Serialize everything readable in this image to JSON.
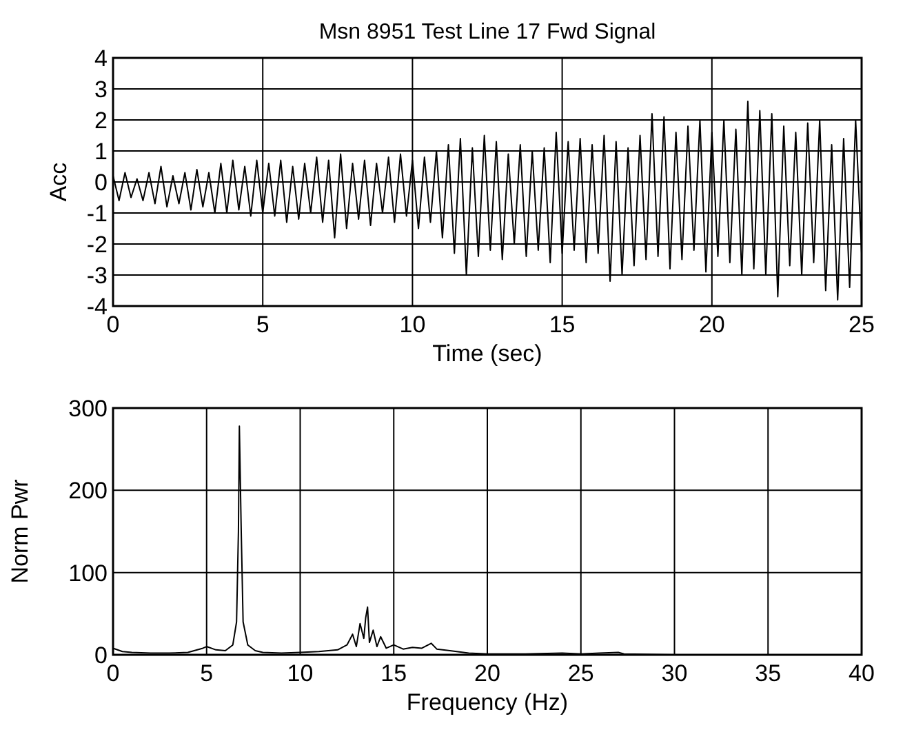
{
  "chart_data": [
    {
      "type": "line",
      "title": "Msn 8951 Test Line 17 Fwd Signal",
      "xlabel": "Time (sec)",
      "ylabel": "Acc",
      "xlim": [
        0,
        25
      ],
      "ylim": [
        -4,
        4
      ],
      "xticks": [
        0,
        5,
        10,
        15,
        20,
        25
      ],
      "yticks": [
        -4,
        -3,
        -2,
        -1,
        0,
        1,
        2,
        3,
        4
      ],
      "grid": true,
      "x": [
        0,
        0.2,
        0.4,
        0.6,
        0.8,
        1,
        1.2,
        1.4,
        1.6,
        1.8,
        2,
        2.2,
        2.4,
        2.6,
        2.8,
        3,
        3.2,
        3.4,
        3.6,
        3.8,
        4,
        4.2,
        4.4,
        4.6,
        4.8,
        5,
        5.2,
        5.4,
        5.6,
        5.8,
        6,
        6.2,
        6.4,
        6.6,
        6.8,
        7,
        7.2,
        7.4,
        7.6,
        7.8,
        8,
        8.2,
        8.4,
        8.6,
        8.8,
        9,
        9.2,
        9.4,
        9.6,
        9.8,
        10,
        10.2,
        10.4,
        10.6,
        10.8,
        11,
        11.2,
        11.4,
        11.6,
        11.8,
        12,
        12.2,
        12.4,
        12.6,
        12.8,
        13,
        13.2,
        13.4,
        13.6,
        13.8,
        14,
        14.2,
        14.4,
        14.6,
        14.8,
        15,
        15.2,
        15.4,
        15.6,
        15.8,
        16,
        16.2,
        16.4,
        16.6,
        16.8,
        17,
        17.2,
        17.4,
        17.6,
        17.8,
        18,
        18.2,
        18.4,
        18.6,
        18.8,
        19,
        19.2,
        19.4,
        19.6,
        19.8,
        20,
        20.2,
        20.4,
        20.6,
        20.8,
        21,
        21.2,
        21.4,
        21.6,
        21.8,
        22,
        22.2,
        22.4,
        22.6,
        22.8,
        23,
        23.2,
        23.4,
        23.6,
        23.8,
        24,
        24.2,
        24.4,
        24.6,
        24.8,
        25
      ],
      "series": [
        {
          "color": "#000000",
          "values": [
            0.2,
            -0.6,
            0.3,
            -0.5,
            0.1,
            -0.6,
            0.3,
            -0.7,
            0.5,
            -0.8,
            0.2,
            -0.7,
            0.3,
            -0.9,
            0.4,
            -0.8,
            0.3,
            -1.0,
            0.6,
            -1.0,
            0.7,
            -0.9,
            0.5,
            -1.1,
            0.7,
            -1.0,
            0.6,
            -1.1,
            0.7,
            -1.3,
            0.5,
            -1.2,
            0.6,
            -1.0,
            0.8,
            -1.3,
            0.7,
            -1.8,
            0.9,
            -1.5,
            0.6,
            -1.2,
            0.7,
            -1.4,
            0.6,
            -1.0,
            0.8,
            -1.3,
            0.9,
            -1.1,
            0.7,
            -1.5,
            0.8,
            -1.3,
            1.0,
            -1.8,
            1.2,
            -2.3,
            1.4,
            -3.0,
            1.1,
            -2.4,
            1.5,
            -2.2,
            1.3,
            -2.5,
            0.9,
            -2.0,
            1.2,
            -2.4,
            1.0,
            -2.2,
            1.1,
            -2.6,
            1.6,
            -2.3,
            1.3,
            -2.2,
            1.4,
            -2.6,
            1.2,
            -2.3,
            1.5,
            -3.2,
            1.3,
            -3.0,
            1.1,
            -2.7,
            1.5,
            -2.5,
            2.2,
            -2.4,
            2.1,
            -2.8,
            1.6,
            -2.5,
            1.8,
            -2.2,
            2.0,
            -2.9,
            1.6,
            -2.4,
            2.0,
            -2.6,
            1.7,
            -3.0,
            2.6,
            -2.8,
            2.3,
            -3.0,
            2.2,
            -3.7,
            1.8,
            -2.7,
            1.6,
            -3.0,
            1.9,
            -2.6,
            2.0,
            -3.5,
            1.2,
            -3.8,
            1.4,
            -3.4,
            2.0,
            -2.3
          ]
        }
      ]
    },
    {
      "type": "line",
      "xlabel": "Frequency (Hz)",
      "ylabel": "Norm Pwr",
      "xlim": [
        0,
        40
      ],
      "ylim": [
        0,
        300
      ],
      "xticks": [
        0,
        5,
        10,
        15,
        20,
        25,
        30,
        35,
        40
      ],
      "yticks": [
        0,
        100,
        200,
        300
      ],
      "grid": true,
      "x": [
        0,
        0.5,
        1,
        2,
        3,
        4,
        4.8,
        5,
        5.5,
        6,
        6.4,
        6.6,
        6.7,
        6.75,
        6.85,
        6.95,
        7.2,
        7.6,
        8,
        9,
        10,
        11,
        12,
        12.5,
        12.8,
        13,
        13.2,
        13.4,
        13.5,
        13.6,
        13.7,
        13.9,
        14.1,
        14.3,
        14.6,
        15,
        15.5,
        16,
        16.5,
        17,
        17.3,
        18,
        19,
        20,
        22,
        24,
        25,
        26,
        27,
        27.3,
        30,
        35,
        40
      ],
      "series": [
        {
          "color": "#000000",
          "values": [
            8,
            4,
            3,
            2,
            2,
            3,
            8,
            10,
            6,
            5,
            12,
            40,
            150,
            278,
            150,
            40,
            12,
            5,
            3,
            2,
            3,
            4,
            6,
            12,
            25,
            10,
            38,
            20,
            45,
            58,
            15,
            30,
            10,
            22,
            8,
            12,
            7,
            9,
            8,
            14,
            7,
            5,
            2,
            1,
            1,
            2,
            1,
            2,
            3,
            1,
            0,
            0,
            0
          ]
        }
      ]
    }
  ]
}
